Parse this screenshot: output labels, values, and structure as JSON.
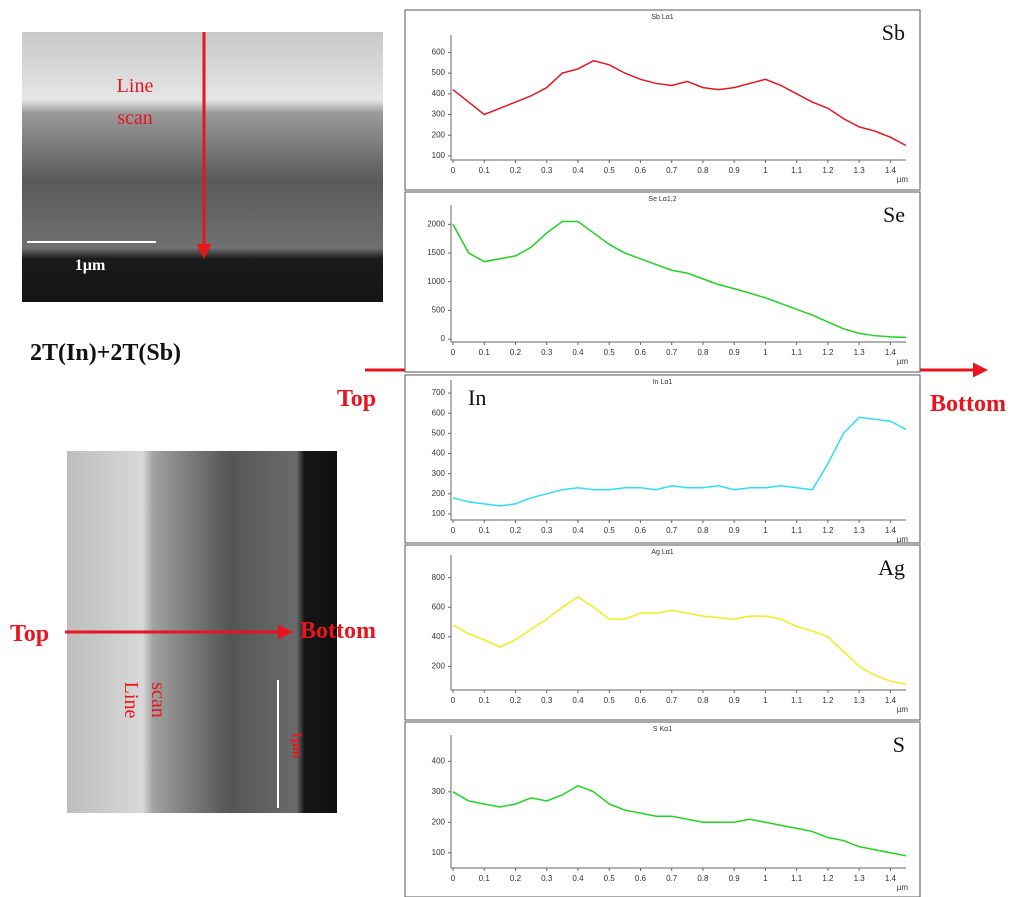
{
  "figure": {
    "top_image": {
      "label_line1": "Line",
      "label_line2": "scan",
      "scale": "1µm"
    },
    "sample": "2T(In)+2T(Sb)",
    "direction": {
      "start": "Top",
      "end": "Bottom"
    },
    "bottom_image": {
      "label_line1": "Line",
      "label_line2": "scan",
      "scale": "1µm",
      "start": "Top",
      "end": "Bottom"
    }
  },
  "chart_data": [
    {
      "type": "line",
      "title": "Sb Lα1",
      "element": "Sb",
      "x_unit": "µm",
      "x": [
        0,
        0.05,
        0.1,
        0.15,
        0.2,
        0.25,
        0.3,
        0.35,
        0.4,
        0.45,
        0.5,
        0.55,
        0.6,
        0.65,
        0.7,
        0.75,
        0.8,
        0.85,
        0.9,
        0.95,
        1,
        1.05,
        1.1,
        1.15,
        1.2,
        1.25,
        1.3,
        1.35,
        1.4,
        1.45
      ],
      "series": [
        {
          "name": "Sb",
          "color": "#e8141e",
          "values": [
            420,
            360,
            300,
            330,
            360,
            390,
            430,
            500,
            520,
            560,
            540,
            500,
            470,
            450,
            440,
            460,
            430,
            420,
            430,
            450,
            470,
            440,
            400,
            360,
            330,
            280,
            240,
            220,
            190,
            150
          ]
        }
      ],
      "xlim": [
        0,
        1.45
      ],
      "ylim": [
        80,
        660
      ],
      "xticks": [
        0,
        0.1,
        0.2,
        0.3,
        0.4,
        0.5,
        0.6,
        0.7,
        0.8,
        0.9,
        1,
        1.1,
        1.2,
        1.3,
        1.4
      ],
      "yticks": [
        100,
        200,
        300,
        400,
        500,
        600
      ]
    },
    {
      "type": "line",
      "title": "Se Lα1,2",
      "element": "Se",
      "x_unit": "µm",
      "x": [
        0,
        0.05,
        0.1,
        0.15,
        0.2,
        0.25,
        0.3,
        0.35,
        0.4,
        0.45,
        0.5,
        0.55,
        0.6,
        0.65,
        0.7,
        0.75,
        0.8,
        0.85,
        0.9,
        0.95,
        1,
        1.05,
        1.1,
        1.15,
        1.2,
        1.25,
        1.3,
        1.35,
        1.4,
        1.45
      ],
      "series": [
        {
          "name": "Se",
          "color": "#1fd31f",
          "values": [
            2000,
            1500,
            1350,
            1400,
            1450,
            1600,
            1850,
            2050,
            2050,
            1850,
            1650,
            1500,
            1400,
            1300,
            1200,
            1150,
            1050,
            950,
            880,
            800,
            720,
            620,
            520,
            420,
            300,
            180,
            100,
            60,
            40,
            30
          ]
        }
      ],
      "xlim": [
        0,
        1.45
      ],
      "ylim": [
        -50,
        2250
      ],
      "xticks": [
        0,
        0.1,
        0.2,
        0.3,
        0.4,
        0.5,
        0.6,
        0.7,
        0.8,
        0.9,
        1,
        1.1,
        1.2,
        1.3,
        1.4
      ],
      "yticks": [
        0,
        500,
        1000,
        1500,
        2000
      ]
    },
    {
      "type": "line",
      "title": "In Lα1",
      "element": "In",
      "x_unit": "µm",
      "x": [
        0,
        0.05,
        0.1,
        0.15,
        0.2,
        0.25,
        0.3,
        0.35,
        0.4,
        0.45,
        0.5,
        0.55,
        0.6,
        0.65,
        0.7,
        0.75,
        0.8,
        0.85,
        0.9,
        0.95,
        1,
        1.05,
        1.1,
        1.15,
        1.2,
        1.25,
        1.3,
        1.35,
        1.4,
        1.45
      ],
      "series": [
        {
          "name": "In",
          "color": "#2de0f0",
          "values": [
            180,
            160,
            150,
            140,
            150,
            180,
            200,
            220,
            230,
            220,
            220,
            230,
            230,
            220,
            240,
            230,
            230,
            240,
            220,
            230,
            230,
            240,
            230,
            220,
            350,
            500,
            580,
            570,
            560,
            520
          ]
        }
      ],
      "xlim": [
        0,
        1.45
      ],
      "ylim": [
        70,
        740
      ],
      "xticks": [
        0,
        0.1,
        0.2,
        0.3,
        0.4,
        0.5,
        0.6,
        0.7,
        0.8,
        0.9,
        1,
        1.1,
        1.2,
        1.3,
        1.4
      ],
      "yticks": [
        100,
        200,
        300,
        400,
        500,
        600,
        700
      ]
    },
    {
      "type": "line",
      "title": "Ag Lα1",
      "element": "Ag",
      "x_unit": "µm",
      "x": [
        0,
        0.05,
        0.1,
        0.15,
        0.2,
        0.25,
        0.3,
        0.35,
        0.4,
        0.45,
        0.5,
        0.55,
        0.6,
        0.65,
        0.7,
        0.75,
        0.8,
        0.85,
        0.9,
        0.95,
        1,
        1.05,
        1.1,
        1.15,
        1.2,
        1.25,
        1.3,
        1.35,
        1.4,
        1.45
      ],
      "series": [
        {
          "name": "Ag",
          "color": "#f0ef17",
          "values": [
            480,
            420,
            380,
            330,
            380,
            450,
            520,
            600,
            670,
            600,
            520,
            520,
            560,
            560,
            580,
            560,
            540,
            530,
            520,
            540,
            540,
            520,
            470,
            440,
            400,
            300,
            200,
            140,
            100,
            80
          ]
        }
      ],
      "xlim": [
        0,
        1.45
      ],
      "ylim": [
        40,
        920
      ],
      "xticks": [
        0,
        0.1,
        0.2,
        0.3,
        0.4,
        0.5,
        0.6,
        0.7,
        0.8,
        0.9,
        1,
        1.1,
        1.2,
        1.3,
        1.4
      ],
      "yticks": [
        200,
        400,
        600,
        800
      ]
    },
    {
      "type": "line",
      "title": "S Kα1",
      "element": "S",
      "x_unit": "µm",
      "x": [
        0,
        0.05,
        0.1,
        0.15,
        0.2,
        0.25,
        0.3,
        0.35,
        0.4,
        0.45,
        0.5,
        0.55,
        0.6,
        0.65,
        0.7,
        0.75,
        0.8,
        0.85,
        0.9,
        0.95,
        1,
        1.05,
        1.1,
        1.15,
        1.2,
        1.25,
        1.3,
        1.35,
        1.4,
        1.45
      ],
      "series": [
        {
          "name": "S",
          "color": "#20d420",
          "values": [
            300,
            270,
            260,
            250,
            260,
            280,
            270,
            290,
            320,
            300,
            260,
            240,
            230,
            220,
            220,
            210,
            200,
            200,
            200,
            210,
            200,
            190,
            180,
            170,
            150,
            140,
            120,
            110,
            100,
            90
          ]
        }
      ],
      "xlim": [
        0,
        1.45
      ],
      "ylim": [
        50,
        470
      ],
      "xticks": [
        0,
        0.1,
        0.2,
        0.3,
        0.4,
        0.5,
        0.6,
        0.7,
        0.8,
        0.9,
        1,
        1.1,
        1.2,
        1.3,
        1.4
      ],
      "yticks": [
        100,
        200,
        300,
        400
      ]
    }
  ]
}
